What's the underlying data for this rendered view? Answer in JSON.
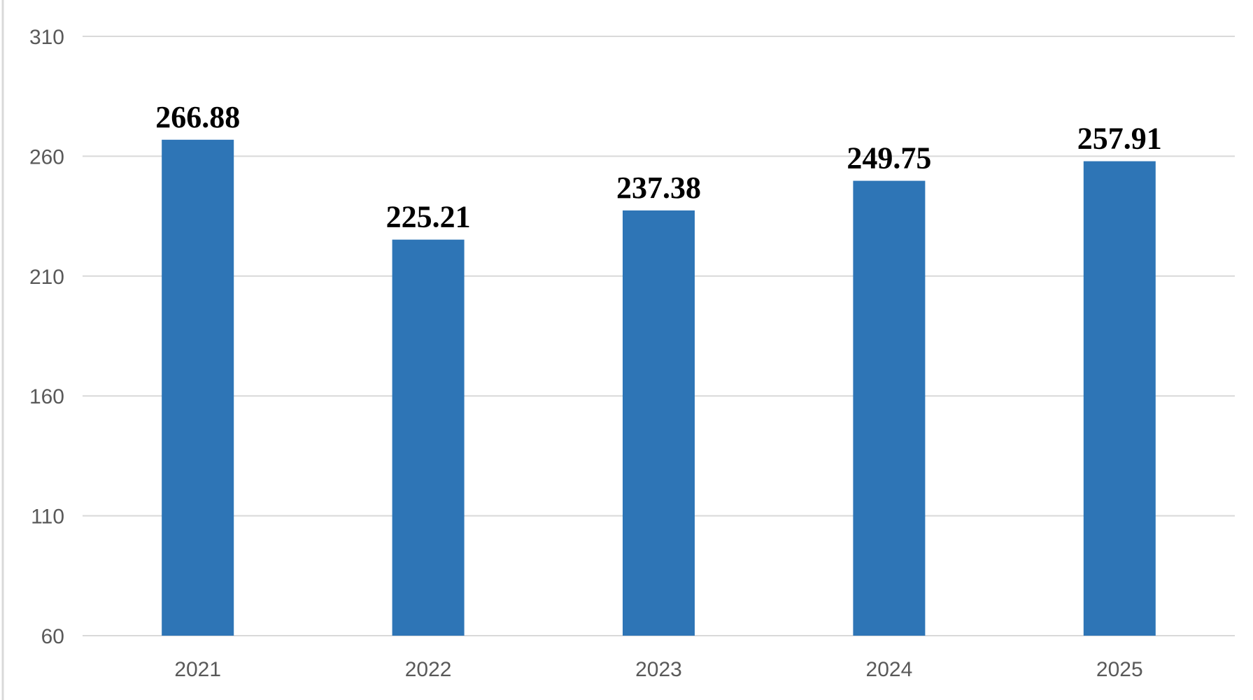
{
  "chart_data": {
    "type": "bar",
    "categories": [
      "2021",
      "2022",
      "2023",
      "2024",
      "2025"
    ],
    "values": [
      266.88,
      225.21,
      237.38,
      249.75,
      257.91
    ],
    "data_labels": [
      "266.88",
      "225.21",
      "237.38",
      "249.75",
      "257.91"
    ],
    "y_ticks": [
      60,
      110,
      160,
      210,
      260,
      310
    ],
    "y_tick_labels": [
      "60",
      "110",
      "160",
      "210",
      "260",
      "310"
    ],
    "ylim": [
      60,
      310
    ],
    "title": "",
    "xlabel": "",
    "ylabel": "",
    "grid": true,
    "legend": "none",
    "bar_color": "#2E75B6",
    "gridline_color": "#D9D9D9",
    "axis_text_color": "#595959",
    "data_label_color": "#000000"
  }
}
